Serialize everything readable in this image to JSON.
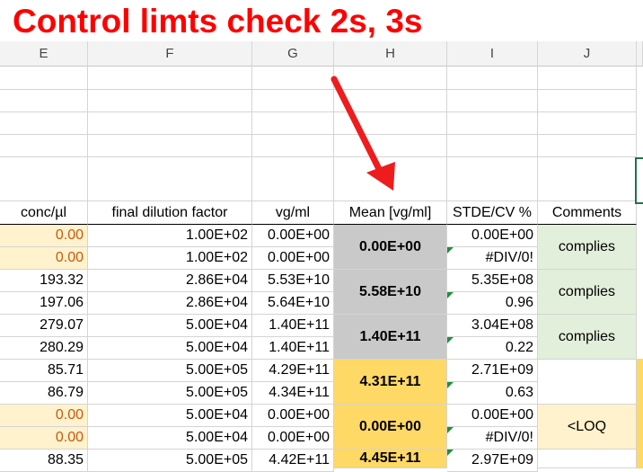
{
  "title": "Control limts check 2s, 3s",
  "columns": [
    "E",
    "F",
    "G",
    "H",
    "I",
    "J"
  ],
  "headers": {
    "conc": "conc/µl",
    "dilution": "final dilution factor",
    "vg": "vg/ml",
    "mean": "Mean [vg/ml]",
    "stde": "STDE/CV %",
    "comments": "Comments"
  },
  "rows": [
    {
      "conc": "0.00",
      "dilution": "1.00E+02",
      "vg": "0.00E+00",
      "stde": "0.00E+00"
    },
    {
      "conc": "0.00",
      "dilution": "1.00E+02",
      "vg": "0.00E+00",
      "stde": "#DIV/0!"
    },
    {
      "conc": "193.32",
      "dilution": "2.86E+04",
      "vg": "5.53E+10",
      "stde": "5.35E+08"
    },
    {
      "conc": "197.06",
      "dilution": "2.86E+04",
      "vg": "5.64E+10",
      "stde": "0.96"
    },
    {
      "conc": "279.07",
      "dilution": "5.00E+04",
      "vg": "1.40E+11",
      "stde": "3.04E+08"
    },
    {
      "conc": "280.29",
      "dilution": "5.00E+04",
      "vg": "1.40E+11",
      "stde": "0.22"
    },
    {
      "conc": "85.71",
      "dilution": "5.00E+05",
      "vg": "4.29E+11",
      "stde": "2.71E+09"
    },
    {
      "conc": "86.79",
      "dilution": "5.00E+05",
      "vg": "4.34E+11",
      "stde": "0.63"
    },
    {
      "conc": "0.00",
      "dilution": "5.00E+04",
      "vg": "0.00E+00",
      "stde": "0.00E+00"
    },
    {
      "conc": "0.00",
      "dilution": "5.00E+04",
      "vg": "0.00E+00",
      "stde": "#DIV/0!"
    },
    {
      "conc": "88.35",
      "dilution": "5.00E+05",
      "vg": "4.42E+11",
      "stde": "2.97E+09"
    }
  ],
  "groups": [
    {
      "mean": "0.00E+00",
      "comment": "complies"
    },
    {
      "mean": "5.58E+10",
      "comment": "complies"
    },
    {
      "mean": "1.40E+11",
      "comment": "complies"
    },
    {
      "mean": "4.31E+11",
      "comment": ""
    },
    {
      "mean": "0.00E+00",
      "comment": "<LOQ"
    },
    {
      "mean": "4.45E+11",
      "comment": ""
    }
  ],
  "colors": {
    "title": "#ff0000",
    "arrow": "#ee1c1c",
    "mean_gray": "#c9c9c9",
    "mean_gold": "#ffd966",
    "comment_green": "#e2efda",
    "conc_yellow": "#fff2cc"
  }
}
